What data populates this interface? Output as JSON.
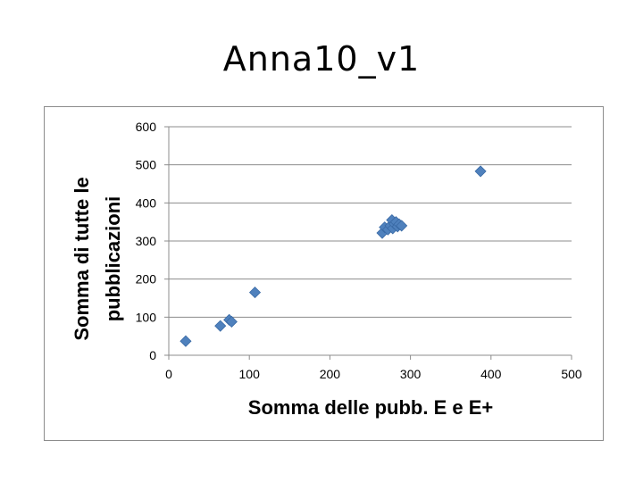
{
  "title": "Anna10_v1",
  "chart_data": {
    "type": "scatter",
    "title": "",
    "xlabel": "Somma delle pubb.  E e E+",
    "ylabel_lines": [
      "Somma di tutte le",
      "pubblicazioni"
    ],
    "xlim": [
      0,
      500
    ],
    "ylim": [
      0,
      600
    ],
    "xticks": [
      0,
      100,
      200,
      300,
      400,
      500
    ],
    "yticks": [
      0,
      100,
      200,
      300,
      400,
      500,
      600
    ],
    "grid": true,
    "marker": "diamond",
    "color": "#4f81bd",
    "points": [
      {
        "x": 21,
        "y": 37
      },
      {
        "x": 64,
        "y": 77
      },
      {
        "x": 75,
        "y": 93
      },
      {
        "x": 78,
        "y": 88
      },
      {
        "x": 107,
        "y": 165
      },
      {
        "x": 265,
        "y": 321
      },
      {
        "x": 268,
        "y": 336
      },
      {
        "x": 272,
        "y": 330
      },
      {
        "x": 275,
        "y": 340
      },
      {
        "x": 277,
        "y": 355
      },
      {
        "x": 278,
        "y": 333
      },
      {
        "x": 280,
        "y": 345
      },
      {
        "x": 282,
        "y": 350
      },
      {
        "x": 284,
        "y": 338
      },
      {
        "x": 286,
        "y": 344
      },
      {
        "x": 289,
        "y": 340
      },
      {
        "x": 387,
        "y": 483
      }
    ]
  }
}
